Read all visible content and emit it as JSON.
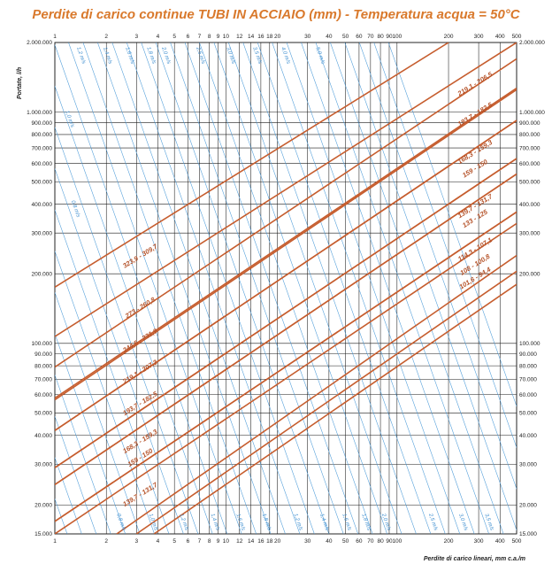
{
  "chart_data": {
    "type": "line",
    "title": "Perdite di carico continue TUBI IN ACCIAIO (mm) - Temperatura acqua = 50°C",
    "xlabel": "Perdite di carico lineari, mm c.a./m",
    "ylabel": "Portate, l/h",
    "x_scale": "log",
    "y_scale": "log",
    "xlim": [
      1,
      500
    ],
    "ylim": [
      15000,
      2000000
    ],
    "x_ticks": [
      {
        "v": 1,
        "label": "1"
      },
      {
        "v": 2,
        "label": "2"
      },
      {
        "v": 3,
        "label": "3"
      },
      {
        "v": 4,
        "label": "4"
      },
      {
        "v": 5,
        "label": "5"
      },
      {
        "v": 6,
        "label": "6"
      },
      {
        "v": 7,
        "label": "7"
      },
      {
        "v": 8,
        "label": "8"
      },
      {
        "v": 9,
        "label": "9"
      },
      {
        "v": 10,
        "label": "10"
      },
      {
        "v": 12,
        "label": "12"
      },
      {
        "v": 14,
        "label": "14"
      },
      {
        "v": 16,
        "label": "16"
      },
      {
        "v": 18,
        "label": "18"
      },
      {
        "v": 20,
        "label": "20"
      },
      {
        "v": 30,
        "label": "30"
      },
      {
        "v": 40,
        "label": "40"
      },
      {
        "v": 50,
        "label": "50"
      },
      {
        "v": 60,
        "label": "60"
      },
      {
        "v": 70,
        "label": "70"
      },
      {
        "v": 80,
        "label": "80"
      },
      {
        "v": 90,
        "label": "90"
      },
      {
        "v": 100,
        "label": "100"
      },
      {
        "v": 200,
        "label": "200"
      },
      {
        "v": 300,
        "label": "300"
      },
      {
        "v": 400,
        "label": "400"
      },
      {
        "v": 500,
        "label": "500"
      }
    ],
    "y_ticks": [
      {
        "v": 15000,
        "label": "15.000"
      },
      {
        "v": 20000,
        "label": "20.000"
      },
      {
        "v": 30000,
        "label": "30.000"
      },
      {
        "v": 40000,
        "label": "40.000"
      },
      {
        "v": 50000,
        "label": "50.000"
      },
      {
        "v": 60000,
        "label": "60.000"
      },
      {
        "v": 70000,
        "label": "70.000"
      },
      {
        "v": 80000,
        "label": "80.000"
      },
      {
        "v": 90000,
        "label": "90.000"
      },
      {
        "v": 100000,
        "label": "100.000"
      },
      {
        "v": 200000,
        "label": "200.000"
      },
      {
        "v": 300000,
        "label": "300.000"
      },
      {
        "v": 400000,
        "label": "400.000"
      },
      {
        "v": 500000,
        "label": "500.000"
      },
      {
        "v": 600000,
        "label": "600.000"
      },
      {
        "v": 700000,
        "label": "700.000"
      },
      {
        "v": 800000,
        "label": "800.000"
      },
      {
        "v": 900000,
        "label": "900.000"
      },
      {
        "v": 1000000,
        "label": "1.000.000"
      },
      {
        "v": 2000000,
        "label": "2.000.000"
      }
    ],
    "pipe_series": [
      {
        "name": "323,9 - 309,7",
        "points": [
          [
            1,
            175000
          ],
          [
            200,
            2000000
          ]
        ],
        "label_at": [
          3.2,
          234000
        ]
      },
      {
        "name": "273 - 260,8",
        "points": [
          [
            1,
            107000
          ],
          [
            500,
            2000000
          ]
        ],
        "label_at": [
          3.2,
          140000
        ]
      },
      {
        "name": "244,5 - 231,9",
        "points": [
          [
            1,
            79000
          ],
          [
            500,
            1700000
          ]
        ],
        "label_at": [
          3.2,
          101000
        ]
      },
      {
        "name": "219,1 - 207,3",
        "points": [
          [
            1,
            58000
          ],
          [
            500,
            1270000
          ]
        ],
        "label_at": [
          3.2,
          74000
        ]
      },
      {
        "name": "193,7 - 182,5",
        "points": [
          [
            1,
            42000
          ],
          [
            500,
            920000
          ]
        ],
        "label_at": [
          3.2,
          54000
        ]
      },
      {
        "name": "168,3 - 159,3",
        "points": [
          [
            1,
            29000
          ],
          [
            500,
            630000
          ]
        ],
        "label_at": [
          3.2,
          37000
        ]
      },
      {
        "name": "159 - 150",
        "points": [
          [
            1,
            24500
          ],
          [
            500,
            540000
          ]
        ],
        "label_at": [
          3.2,
          31500
        ]
      },
      {
        "name": "139,7 - 131,7",
        "points": [
          [
            1,
            17000
          ],
          [
            500,
            370000
          ]
        ],
        "label_at": [
          3.2,
          21800
        ]
      },
      {
        "name": "219,1 - 206,5",
        "points": [
          [
            1,
            57000
          ],
          [
            500,
            1250000
          ]
        ],
        "label_at": [
          290,
          1300000
        ]
      },
      {
        "name": "193,7 - 182,5",
        "points": [
          [
            1,
            42000
          ],
          [
            500,
            920000
          ]
        ],
        "label_at": [
          290,
          960000
        ]
      },
      {
        "name": "168,3 - 159,3",
        "points": [
          [
            1,
            29000
          ],
          [
            500,
            630000
          ]
        ],
        "label_at": [
          290,
          660000
        ]
      },
      {
        "name": "159 - 150",
        "points": [
          [
            1,
            24500
          ],
          [
            500,
            540000
          ]
        ],
        "label_at": [
          290,
          560000
        ]
      },
      {
        "name": "139,7 - 131,7",
        "points": [
          [
            1,
            17000
          ],
          [
            500,
            370000
          ]
        ],
        "label_at": [
          290,
          385000
        ]
      },
      {
        "name": "133 - 125",
        "points": [
          [
            1,
            15000
          ],
          [
            500,
            330000
          ]
        ],
        "label_at": [
          290,
          340000
        ]
      },
      {
        "name": "114,3 - 107,1",
        "points": [
          [
            2.3,
            15000
          ],
          [
            500,
            240000
          ]
        ],
        "label_at": [
          290,
          250000
        ]
      },
      {
        "name": "108 - 100,8",
        "points": [
          [
            3,
            15000
          ],
          [
            500,
            205000
          ]
        ],
        "label_at": [
          290,
          215000
        ]
      },
      {
        "name": "101,6 - 94,4",
        "points": [
          [
            3.8,
            15000
          ],
          [
            500,
            180000
          ]
        ],
        "label_at": [
          290,
          188000
        ]
      }
    ],
    "velocity_series": [
      {
        "name": "1,2 m/s",
        "label_at": [
          1.4,
          1750000
        ]
      },
      {
        "name": "1,4 m/s",
        "label_at": [
          2.0,
          1750000
        ]
      },
      {
        "name": "1,6 m/s",
        "label_at": [
          2.7,
          1750000
        ]
      },
      {
        "name": "1,8 m/s",
        "label_at": [
          3.6,
          1750000
        ]
      },
      {
        "name": "2,0 m/s",
        "label_at": [
          4.4,
          1750000
        ]
      },
      {
        "name": "2,5 m/s",
        "label_at": [
          7.0,
          1750000
        ]
      },
      {
        "name": "3,0 m/s",
        "label_at": [
          10.5,
          1750000
        ]
      },
      {
        "name": "3,5 m/s",
        "label_at": [
          15,
          1750000
        ]
      },
      {
        "name": "4,0 m/s",
        "label_at": [
          22,
          1750000
        ]
      },
      {
        "name": "5,0 m/s",
        "label_at": [
          35,
          1750000
        ]
      },
      {
        "name": "1,0 m/s",
        "label_at": [
          1.2,
          930000
        ]
      },
      {
        "name": "0,8 m/s",
        "label_at": [
          1.3,
          380000
        ]
      },
      {
        "name": "0,8 m/s",
        "label_at": [
          2.4,
          16800
        ]
      },
      {
        "name": "1,0 m/s",
        "label_at": [
          3.7,
          16800
        ]
      },
      {
        "name": "1,2 m/s",
        "label_at": [
          5.6,
          16800
        ]
      },
      {
        "name": "1,4 m/s",
        "label_at": [
          8.5,
          16800
        ]
      },
      {
        "name": "1,6 m/s",
        "label_at": [
          12,
          16800
        ]
      },
      {
        "name": "1,8 m/s",
        "label_at": [
          17,
          16800
        ]
      },
      {
        "name": "1,2 m/s",
        "label_at": [
          26,
          16800
        ]
      },
      {
        "name": "1,4 m/s",
        "label_at": [
          37,
          16800
        ]
      },
      {
        "name": "1,6 m/s",
        "label_at": [
          50,
          16800
        ]
      },
      {
        "name": "1,8 m/s",
        "label_at": [
          65,
          16800
        ]
      },
      {
        "name": "2,0 m/s",
        "label_at": [
          85,
          16800
        ]
      },
      {
        "name": "2,5 m/s",
        "label_at": [
          160,
          16800
        ]
      },
      {
        "name": "3,0 m/s",
        "label_at": [
          240,
          16800
        ]
      },
      {
        "name": "3,5 m/s",
        "label_at": [
          340,
          16800
        ]
      }
    ],
    "colors": {
      "pipe": "#c65d2e",
      "velocity": "#4a9ad8",
      "grid": "#1a1a1a",
      "title": "#d9792c"
    }
  }
}
